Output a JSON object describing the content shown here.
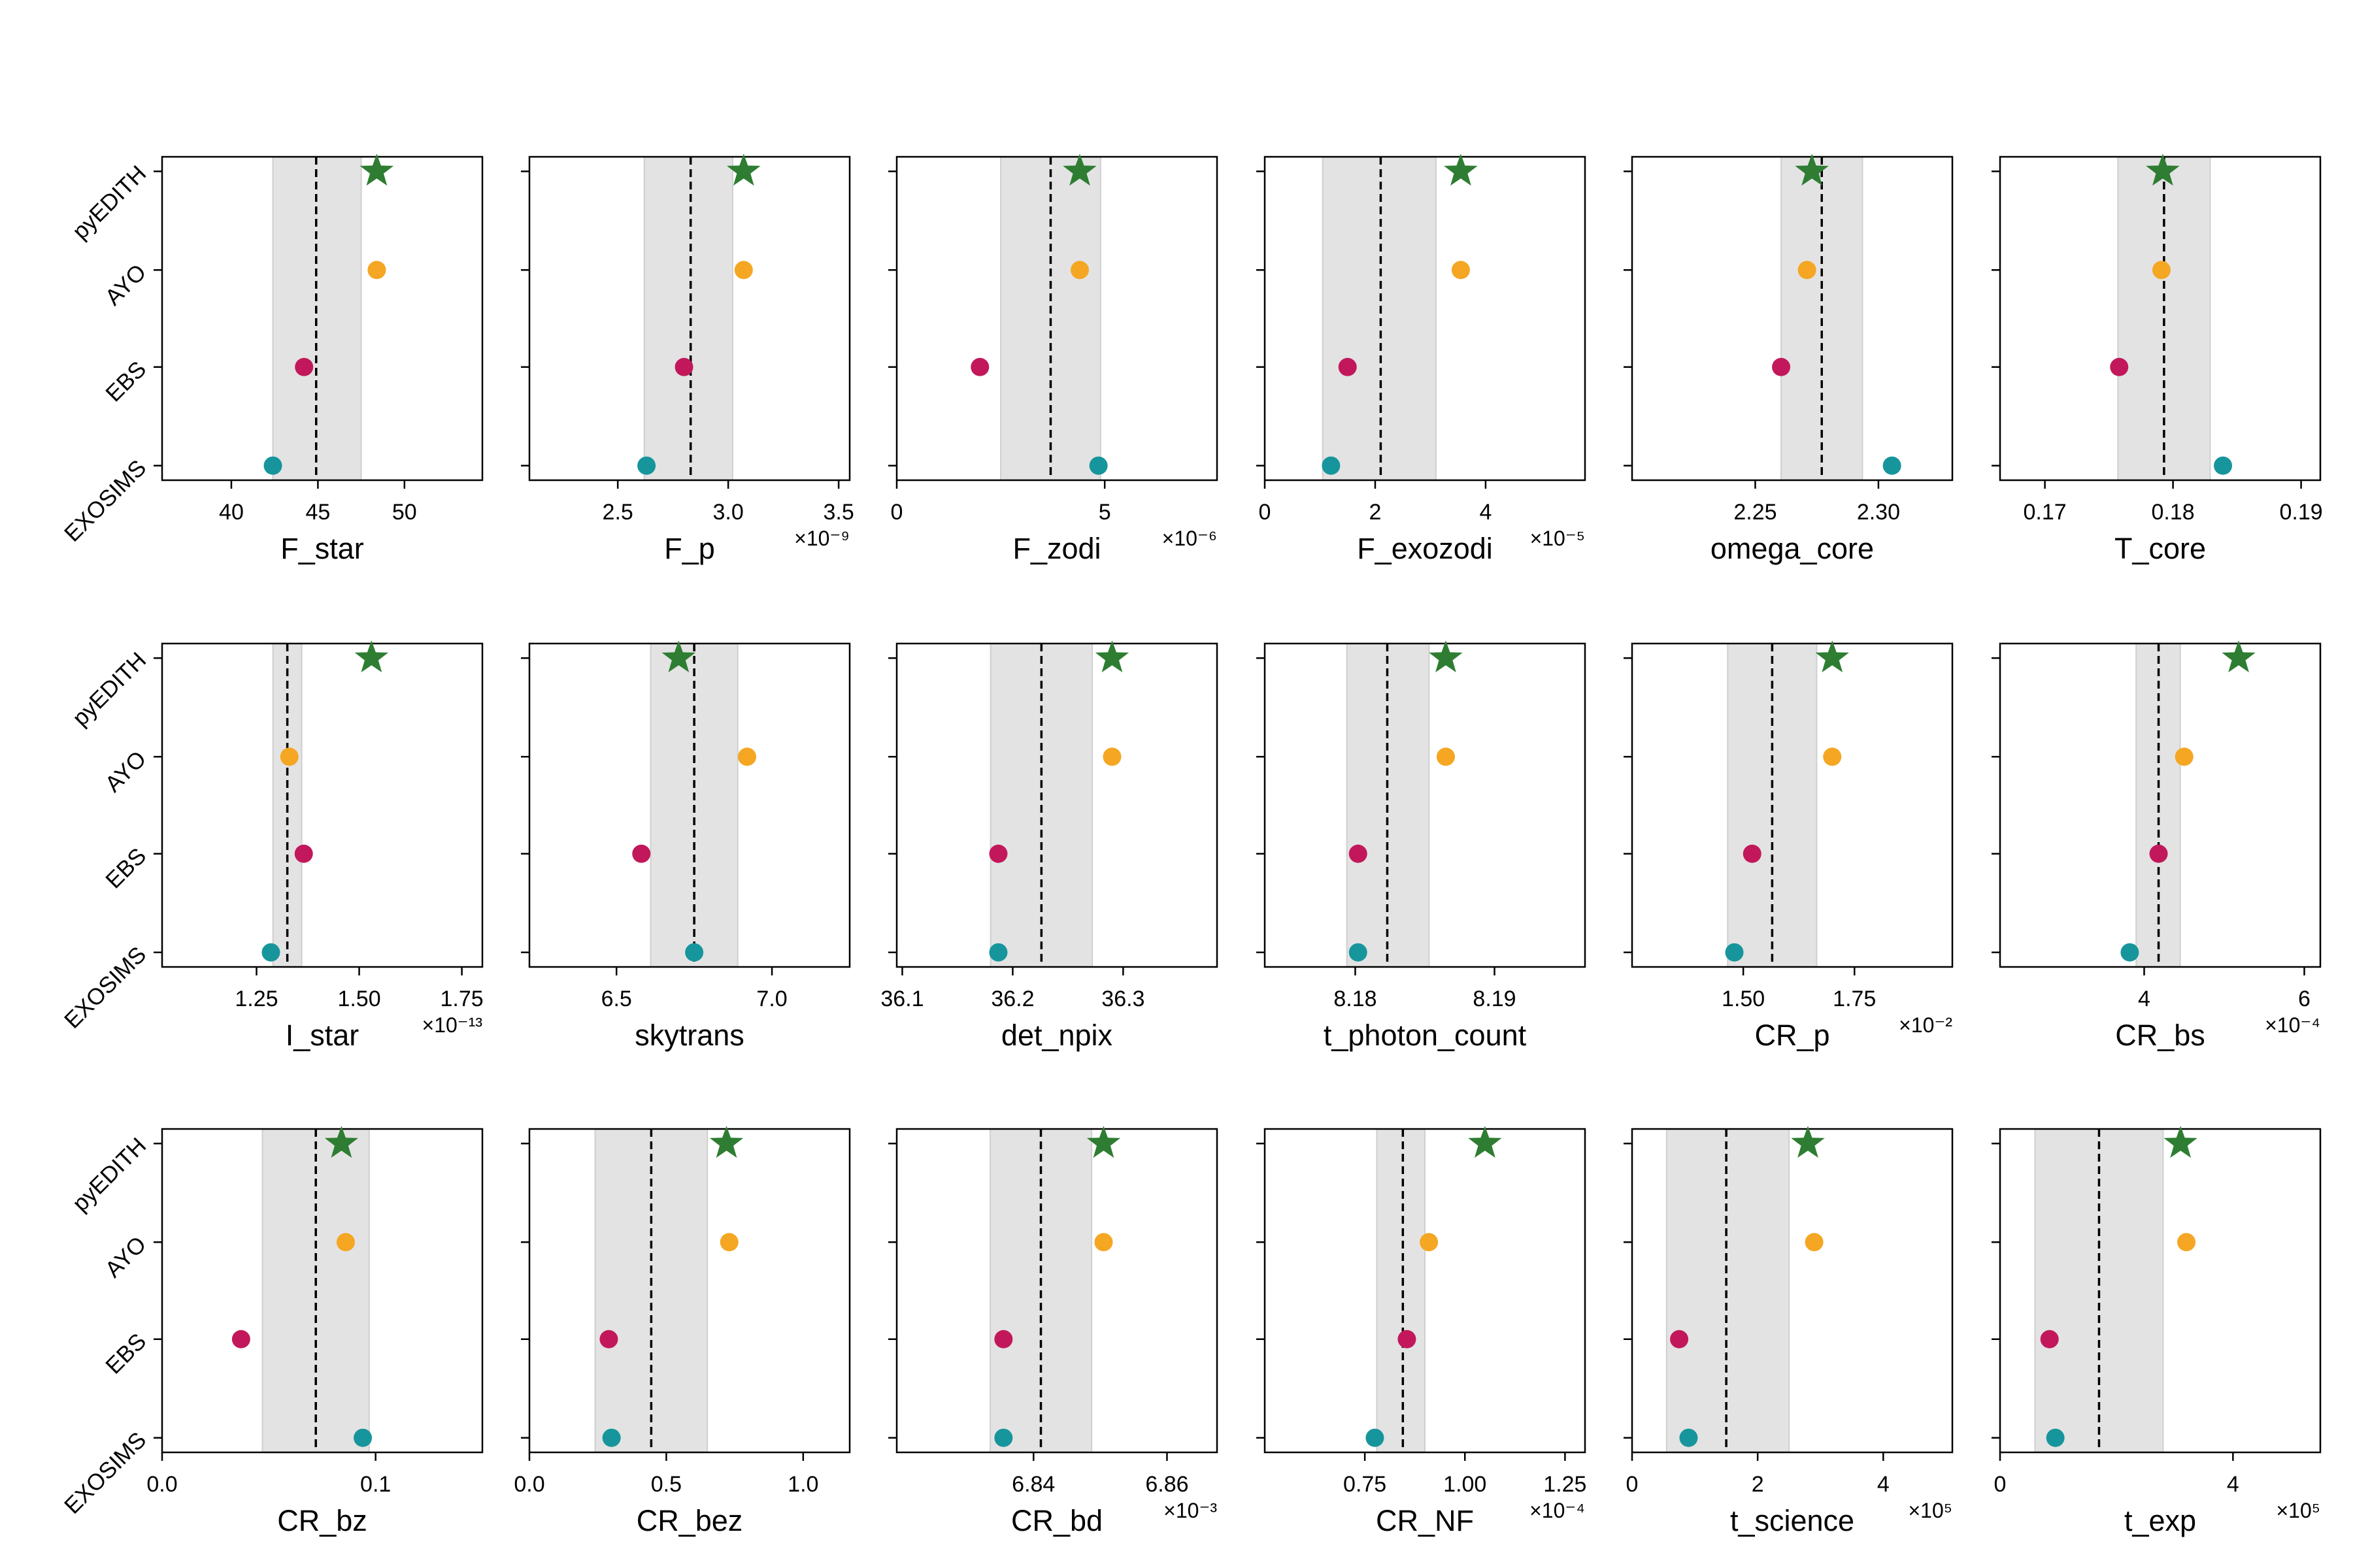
{
  "category_labels": [
    "pyEDITH",
    "AYO",
    "EBS",
    "EXOSIMS"
  ],
  "colors": {
    "pyEDITH": "#2e7d32",
    "AYO": "#f5a623",
    "EBS": "#c2185b",
    "EXOSIMS": "#17959c",
    "band": "#e3e3e3",
    "mean_line": "#000000"
  },
  "chart_data": [
    {
      "type": "scatter",
      "xlabel": "F_star",
      "exponent": "",
      "xlim": [
        36,
        54.5
      ],
      "ticks": [
        40,
        45,
        50
      ],
      "tick_labels": [
        "40",
        "45",
        "50"
      ],
      "band": [
        42.4,
        47.5
      ],
      "mean": 44.9,
      "values": {
        "pyEDITH": 48.4,
        "AYO": 48.4,
        "EBS": 44.2,
        "EXOSIMS": 42.4
      }
    },
    {
      "type": "scatter",
      "xlabel": "F_p",
      "exponent": "×10⁻⁹",
      "xlim": [
        2.1,
        3.55
      ],
      "ticks": [
        2.5,
        3.0,
        3.5
      ],
      "tick_labels": [
        "2.5",
        "3.0",
        "3.5"
      ],
      "band": [
        2.62,
        3.02
      ],
      "mean": 2.83,
      "values": {
        "pyEDITH": 3.07,
        "AYO": 3.07,
        "EBS": 2.8,
        "EXOSIMS": 2.63
      }
    },
    {
      "type": "scatter",
      "xlabel": "F_zodi",
      "exponent": "×10⁻⁶",
      "xlim": [
        0,
        7.7
      ],
      "ticks": [
        0,
        5
      ],
      "tick_labels": [
        "0",
        "5"
      ],
      "band": [
        2.5,
        4.9
      ],
      "mean": 3.7,
      "values": {
        "pyEDITH": 4.4,
        "AYO": 4.4,
        "EBS": 2.0,
        "EXOSIMS": 4.85
      }
    },
    {
      "type": "scatter",
      "xlabel": "F_exozodi",
      "exponent": "×10⁻⁵",
      "xlim": [
        0,
        5.8
      ],
      "ticks": [
        0,
        2,
        4
      ],
      "tick_labels": [
        "0",
        "2",
        "4"
      ],
      "band": [
        1.05,
        3.1
      ],
      "mean": 2.1,
      "values": {
        "pyEDITH": 3.55,
        "AYO": 3.55,
        "EBS": 1.5,
        "EXOSIMS": 1.2
      }
    },
    {
      "type": "scatter",
      "xlabel": "omega_core",
      "exponent": "",
      "xlim": [
        2.2,
        2.33
      ],
      "ticks": [
        2.25,
        2.3
      ],
      "tick_labels": [
        "2.25",
        "2.30"
      ],
      "band": [
        2.2605,
        2.2935
      ],
      "mean": 2.277,
      "values": {
        "pyEDITH": 2.273,
        "AYO": 2.271,
        "EBS": 2.2605,
        "EXOSIMS": 2.3055
      }
    },
    {
      "type": "scatter",
      "xlabel": "T_core",
      "exponent": "",
      "xlim": [
        0.1665,
        0.1915
      ],
      "ticks": [
        0.17,
        0.18,
        0.19
      ],
      "tick_labels": [
        "0.17",
        "0.18",
        "0.19"
      ],
      "band": [
        0.1757,
        0.1829
      ],
      "mean": 0.1793,
      "values": {
        "pyEDITH": 0.1792,
        "AYO": 0.1791,
        "EBS": 0.1758,
        "EXOSIMS": 0.1839
      }
    },
    {
      "type": "scatter",
      "xlabel": "I_star",
      "exponent": "×10⁻¹³",
      "xlim": [
        1.02,
        1.8
      ],
      "ticks": [
        1.25,
        1.5,
        1.75
      ],
      "tick_labels": [
        "1.25",
        "1.50",
        "1.75"
      ],
      "band": [
        1.29,
        1.36
      ],
      "mean": 1.325,
      "values": {
        "pyEDITH": 1.53,
        "AYO": 1.33,
        "EBS": 1.365,
        "EXOSIMS": 1.285
      }
    },
    {
      "type": "scatter",
      "xlabel": "skytrans",
      "exponent": "",
      "xlim": [
        6.22,
        7.25
      ],
      "ticks": [
        6.5,
        7.0
      ],
      "tick_labels": [
        "6.5",
        "7.0"
      ],
      "band": [
        6.61,
        6.89
      ],
      "mean": 6.75,
      "values": {
        "pyEDITH": 6.7,
        "AYO": 6.92,
        "EBS": 6.58,
        "EXOSIMS": 6.75
      }
    },
    {
      "type": "scatter",
      "xlabel": "det_npix",
      "exponent": "",
      "xlim": [
        36.095,
        36.385
      ],
      "ticks": [
        36.1,
        36.2,
        36.3
      ],
      "tick_labels": [
        "36.1",
        "36.2",
        "36.3"
      ],
      "band": [
        36.18,
        36.272
      ],
      "mean": 36.226,
      "values": {
        "pyEDITH": 36.29,
        "AYO": 36.29,
        "EBS": 36.187,
        "EXOSIMS": 36.187
      }
    },
    {
      "type": "scatter",
      "xlabel": "t_photon_count",
      "exponent": "",
      "xlim": [
        8.1735,
        8.1965
      ],
      "ticks": [
        8.18,
        8.19
      ],
      "tick_labels": [
        "8.18",
        "8.19"
      ],
      "band": [
        8.1794,
        8.1853
      ],
      "mean": 8.1823,
      "values": {
        "pyEDITH": 8.1865,
        "AYO": 8.1865,
        "EBS": 8.1802,
        "EXOSIMS": 8.1802
      }
    },
    {
      "type": "scatter",
      "xlabel": "CR_p",
      "exponent": "×10⁻²",
      "xlim": [
        1.25,
        1.97
      ],
      "ticks": [
        1.5,
        1.75
      ],
      "tick_labels": [
        "1.50",
        "1.75"
      ],
      "band": [
        1.465,
        1.665
      ],
      "mean": 1.565,
      "values": {
        "pyEDITH": 1.7,
        "AYO": 1.7,
        "EBS": 1.52,
        "EXOSIMS": 1.48
      }
    },
    {
      "type": "scatter",
      "xlabel": "CR_bs",
      "exponent": "×10⁻⁴",
      "xlim": [
        2.2,
        6.2
      ],
      "ticks": [
        4,
        6
      ],
      "tick_labels": [
        "4",
        "6"
      ],
      "band": [
        3.9,
        4.45
      ],
      "mean": 4.18,
      "values": {
        "pyEDITH": 5.18,
        "AYO": 4.5,
        "EBS": 4.18,
        "EXOSIMS": 3.82
      }
    },
    {
      "type": "scatter",
      "xlabel": "CR_bz",
      "exponent": "",
      "xlim": [
        0,
        0.15
      ],
      "ticks": [
        0,
        0.1
      ],
      "tick_labels": [
        "0.0",
        "0.1"
      ],
      "band": [
        0.047,
        0.097
      ],
      "mean": 0.072,
      "values": {
        "pyEDITH": 0.084,
        "AYO": 0.086,
        "EBS": 0.037,
        "EXOSIMS": 0.094
      }
    },
    {
      "type": "scatter",
      "xlabel": "CR_bez",
      "exponent": "",
      "xlim": [
        0,
        1.17
      ],
      "ticks": [
        0,
        0.5,
        1.0
      ],
      "tick_labels": [
        "0.0",
        "0.5",
        "1.0"
      ],
      "band": [
        0.24,
        0.65
      ],
      "mean": 0.445,
      "values": {
        "pyEDITH": 0.72,
        "AYO": 0.73,
        "EBS": 0.29,
        "EXOSIMS": 0.3
      }
    },
    {
      "type": "scatter",
      "xlabel": "CR_bd",
      "exponent": "×10⁻³",
      "xlim": [
        6.8195,
        6.8675
      ],
      "ticks": [
        6.84,
        6.86
      ],
      "tick_labels": [
        "6.84",
        "6.86"
      ],
      "band": [
        6.8335,
        6.8487
      ],
      "mean": 6.8411,
      "values": {
        "pyEDITH": 6.8505,
        "AYO": 6.8505,
        "EBS": 6.8355,
        "EXOSIMS": 6.8355
      }
    },
    {
      "type": "scatter",
      "xlabel": "CR_NF",
      "exponent": "×10⁻⁴",
      "xlim": [
        0.5,
        1.3
      ],
      "ticks": [
        0.75,
        1.0,
        1.25
      ],
      "tick_labels": [
        "0.75",
        "1.00",
        "1.25"
      ],
      "band": [
        0.78,
        0.9
      ],
      "mean": 0.845,
      "values": {
        "pyEDITH": 1.05,
        "AYO": 0.91,
        "EBS": 0.855,
        "EXOSIMS": 0.775
      }
    },
    {
      "type": "scatter",
      "xlabel": "t_science",
      "exponent": "×10⁵",
      "xlim": [
        0,
        5.1
      ],
      "ticks": [
        0,
        2,
        4
      ],
      "tick_labels": [
        "0",
        "2",
        "4"
      ],
      "band": [
        0.55,
        2.5
      ],
      "mean": 1.5,
      "values": {
        "pyEDITH": 2.8,
        "AYO": 2.9,
        "EBS": 0.75,
        "EXOSIMS": 0.9
      }
    },
    {
      "type": "scatter",
      "xlabel": "t_exp",
      "exponent": "×10⁵",
      "xlim": [
        0,
        5.5
      ],
      "ticks": [
        0,
        4
      ],
      "tick_labels": [
        "0",
        "4"
      ],
      "band": [
        0.6,
        2.8
      ],
      "mean": 1.7,
      "values": {
        "pyEDITH": 3.1,
        "AYO": 3.2,
        "EBS": 0.85,
        "EXOSIMS": 0.95
      }
    }
  ]
}
